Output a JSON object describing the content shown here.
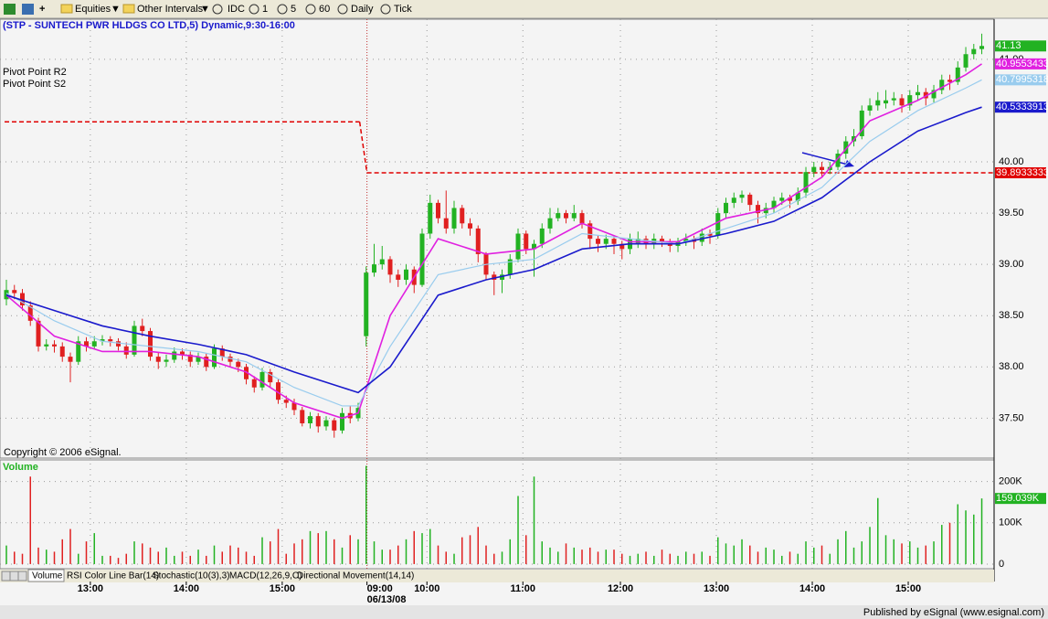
{
  "toolbar": {
    "items": [
      "Equities",
      "Other Intervals",
      "IDC",
      "1",
      "5",
      "60",
      "Daily",
      "Tick"
    ]
  },
  "tabs": [
    "Volume",
    "RSI Color Line Bar(14)",
    "Stochastic(10(3),3)",
    "MACD(12,26,9,C)",
    "Directional Movement(14,14)"
  ],
  "footer": "Published by eSignal (www.esignal.com)",
  "copyright": "Copyright © 2006 eSignal.",
  "chart_data": [
    {
      "type": "candlestick",
      "title": "(STP - SUNTECH PWR HLDGS CO LTD,5) Dynamic,9:30-16:00",
      "up_color": "#22b222",
      "down_color": "#e02020",
      "xlim": [
        -0.8,
        123.54
      ],
      "xticks": [
        {
          "value": 10.5,
          "label": "13:00"
        },
        {
          "value": 22.5,
          "label": "14:00"
        },
        {
          "value": 34.5,
          "label": "15:00"
        },
        {
          "value": 45.1,
          "label": "09:00"
        },
        {
          "value": 52.6,
          "label": "10:00"
        },
        {
          "value": 64.6,
          "label": "11:00"
        },
        {
          "value": 76.8,
          "label": "12:00"
        },
        {
          "value": 88.8,
          "label": "13:00"
        },
        {
          "value": 100.8,
          "label": "14:00"
        },
        {
          "value": 112.8,
          "label": "15:00"
        }
      ],
      "date_label": "06/13/08",
      "ylim": [
        37.12,
        41.4
      ],
      "yticks": [
        {
          "value": 41,
          "label": "41.00"
        },
        {
          "value": 40,
          "label": "40.00"
        },
        {
          "value": 39.5,
          "label": "39.50"
        },
        {
          "value": 39,
          "label": "39.00"
        },
        {
          "value": 38.5,
          "label": "38.50"
        },
        {
          "value": 38,
          "label": "38.00"
        },
        {
          "value": 37.5,
          "label": "37.50"
        }
      ],
      "grid": true,
      "open": [
        38.66,
        38.75,
        38.72,
        38.6,
        38.45,
        38.2,
        38.22,
        38.2,
        38.1,
        38.05,
        38.25,
        38.2,
        38.25,
        38.27,
        38.25,
        38.2,
        38.12,
        38.4,
        38.35,
        38.1,
        38.05,
        38.07,
        38.15,
        38.12,
        38.05,
        38.1,
        38.0,
        38.18,
        38.1,
        38.05,
        38.0,
        37.88,
        37.8,
        37.95,
        37.85,
        37.68,
        37.65,
        37.58,
        37.45,
        37.52,
        37.42,
        37.48,
        37.38,
        37.55,
        37.5,
        38.3,
        38.92,
        39.0,
        39.05,
        38.9,
        38.85,
        38.95,
        38.8,
        39.3,
        39.6,
        39.45,
        39.35,
        39.55,
        39.4,
        39.35,
        39.1,
        38.9,
        38.85,
        38.9,
        39.05,
        39.3,
        39.15,
        39.2,
        39.35,
        39.45,
        39.5,
        39.45,
        39.5,
        39.4,
        39.25,
        39.2,
        39.25,
        39.2,
        39.15,
        39.2,
        39.25,
        39.2,
        39.25,
        39.22,
        39.18,
        39.22,
        39.25,
        39.22,
        39.3,
        39.28,
        39.5,
        39.6,
        39.65,
        39.68,
        39.58,
        39.5,
        39.55,
        39.62,
        39.65,
        39.62,
        39.7,
        39.9,
        39.95,
        39.92,
        39.95,
        40.08,
        40.2,
        40.25,
        40.5,
        40.55,
        40.57,
        40.6,
        40.62,
        40.55,
        40.65,
        40.68,
        40.62,
        40.7,
        40.8,
        40.78,
        40.92,
        41.05,
        41.1
      ],
      "high": [
        38.85,
        38.8,
        38.76,
        38.64,
        38.48,
        38.27,
        38.26,
        38.24,
        38.14,
        38.3,
        38.29,
        38.3,
        38.31,
        38.3,
        38.28,
        38.24,
        38.45,
        38.47,
        38.38,
        38.14,
        38.12,
        38.19,
        38.18,
        38.15,
        38.14,
        38.13,
        38.22,
        38.21,
        38.13,
        38.08,
        38.03,
        37.91,
        37.99,
        37.98,
        37.88,
        37.72,
        37.69,
        37.61,
        37.56,
        37.55,
        37.52,
        37.5,
        37.6,
        37.62,
        37.65,
        38.98,
        39.2,
        39.18,
        39.08,
        38.95,
        39.0,
        38.98,
        39.35,
        39.68,
        39.63,
        39.72,
        39.62,
        39.58,
        39.45,
        39.38,
        39.12,
        38.93,
        38.95,
        39.1,
        39.35,
        39.33,
        39.24,
        39.4,
        39.55,
        39.55,
        39.53,
        39.58,
        39.53,
        39.43,
        39.28,
        39.29,
        39.28,
        39.23,
        39.3,
        39.32,
        39.28,
        39.3,
        39.28,
        39.25,
        39.26,
        39.3,
        39.28,
        39.35,
        39.34,
        39.55,
        39.65,
        39.7,
        39.72,
        39.7,
        39.62,
        39.6,
        39.66,
        39.7,
        39.68,
        39.75,
        39.95,
        40.0,
        40.0,
        40.0,
        40.12,
        40.25,
        40.32,
        40.55,
        40.62,
        40.68,
        40.7,
        40.68,
        40.66,
        40.7,
        40.75,
        40.72,
        40.75,
        40.85,
        40.85,
        40.98,
        41.12,
        41.15,
        41.25
      ],
      "low": [
        38.6,
        38.66,
        38.55,
        38.4,
        38.15,
        38.16,
        38.14,
        38.05,
        37.85,
        38.02,
        38.15,
        38.17,
        38.21,
        38.2,
        38.16,
        38.08,
        38.1,
        38.3,
        38.06,
        37.98,
        38.0,
        38.04,
        38.07,
        38.0,
        38.02,
        37.96,
        37.98,
        38.06,
        38.0,
        37.95,
        37.83,
        37.75,
        37.77,
        37.8,
        37.64,
        37.6,
        37.53,
        37.42,
        37.4,
        37.36,
        37.38,
        37.31,
        37.35,
        37.45,
        37.47,
        38.2,
        38.88,
        38.95,
        38.82,
        38.78,
        38.8,
        38.72,
        38.78,
        39.25,
        39.4,
        39.3,
        39.3,
        39.35,
        39.28,
        39.02,
        38.85,
        38.7,
        38.72,
        38.86,
        39.02,
        39.1,
        38.88,
        39.16,
        39.3,
        39.42,
        39.4,
        39.42,
        39.35,
        39.15,
        39.12,
        39.15,
        39.1,
        39.05,
        39.1,
        39.16,
        39.15,
        39.15,
        39.17,
        39.12,
        39.12,
        39.18,
        39.15,
        39.18,
        39.2,
        39.25,
        39.45,
        39.55,
        39.6,
        39.52,
        39.4,
        39.45,
        39.5,
        39.58,
        39.55,
        39.58,
        39.65,
        39.85,
        39.86,
        39.88,
        39.92,
        40.03,
        40.15,
        40.22,
        40.45,
        40.5,
        40.52,
        40.55,
        40.48,
        40.5,
        40.6,
        40.55,
        40.58,
        40.66,
        40.7,
        40.75,
        40.88,
        41.0,
        41.05
      ],
      "close": [
        38.75,
        38.72,
        38.6,
        38.45,
        38.2,
        38.22,
        38.2,
        38.1,
        38.05,
        38.25,
        38.2,
        38.25,
        38.27,
        38.25,
        38.2,
        38.12,
        38.4,
        38.35,
        38.1,
        38.05,
        38.07,
        38.15,
        38.12,
        38.05,
        38.1,
        38.0,
        38.18,
        38.1,
        38.05,
        38.0,
        37.88,
        37.8,
        37.95,
        37.85,
        37.68,
        37.65,
        37.58,
        37.45,
        37.52,
        37.42,
        37.48,
        37.38,
        37.55,
        37.5,
        37.6,
        38.92,
        39.0,
        39.05,
        38.9,
        38.85,
        38.95,
        38.8,
        39.3,
        39.6,
        39.45,
        39.35,
        39.55,
        39.4,
        39.35,
        39.1,
        38.9,
        38.85,
        38.9,
        39.05,
        39.3,
        39.15,
        39.2,
        39.35,
        39.45,
        39.5,
        39.45,
        39.5,
        39.4,
        39.25,
        39.2,
        39.25,
        39.2,
        39.15,
        39.25,
        39.25,
        39.2,
        39.25,
        39.22,
        39.18,
        39.22,
        39.25,
        39.22,
        39.3,
        39.28,
        39.5,
        39.6,
        39.65,
        39.68,
        39.58,
        39.5,
        39.55,
        39.62,
        39.65,
        39.62,
        39.7,
        39.9,
        39.95,
        39.92,
        39.95,
        40.08,
        40.2,
        40.25,
        40.5,
        40.55,
        40.6,
        40.6,
        40.62,
        40.55,
        40.65,
        40.68,
        40.62,
        40.7,
        40.8,
        40.78,
        40.92,
        41.05,
        41.1,
        41.13
      ],
      "series": [
        {
          "color": "#e020e0",
          "x": [
            0,
            6,
            12,
            18,
            24,
            30,
            36,
            42,
            44,
            48,
            54,
            60,
            66,
            72,
            78,
            84,
            90,
            96,
            102,
            108,
            114,
            120,
            122
          ],
          "values": [
            38.7,
            38.3,
            38.15,
            38.15,
            38.1,
            37.95,
            37.65,
            37.5,
            37.55,
            38.5,
            39.25,
            39.1,
            39.15,
            39.4,
            39.22,
            39.22,
            39.45,
            39.55,
            39.85,
            40.4,
            40.6,
            40.85,
            40.9553433
          ]
        },
        {
          "color": "#99ccee",
          "x": [
            0,
            6,
            12,
            18,
            24,
            30,
            36,
            42,
            44,
            48,
            54,
            60,
            66,
            72,
            78,
            84,
            90,
            96,
            102,
            108,
            114,
            120,
            122
          ],
          "values": [
            38.72,
            38.45,
            38.25,
            38.2,
            38.15,
            38.05,
            37.8,
            37.62,
            37.62,
            38.2,
            38.9,
            39.0,
            39.05,
            39.3,
            39.25,
            39.2,
            39.35,
            39.5,
            39.75,
            40.2,
            40.5,
            40.72,
            40.7995318
          ]
        },
        {
          "color": "#1a1acc",
          "x": [
            0,
            6,
            12,
            18,
            24,
            30,
            36,
            42,
            44,
            48,
            54,
            60,
            66,
            72,
            78,
            84,
            90,
            96,
            102,
            108,
            114,
            120,
            122
          ],
          "values": [
            38.7,
            38.55,
            38.4,
            38.3,
            38.22,
            38.12,
            37.95,
            37.8,
            37.75,
            38.0,
            38.7,
            38.85,
            38.95,
            39.15,
            39.2,
            39.2,
            39.3,
            39.42,
            39.65,
            40.0,
            40.3,
            40.48,
            40.5333913
          ]
        }
      ],
      "pivots": [
        {
          "name": "Pivot Point R2"
        },
        {
          "name": "Pivot Point S2",
          "color": "#e00000",
          "values": [
            40.39,
            39.8933333
          ]
        }
      ]
    },
    {
      "type": "bar",
      "title": "Volume",
      "ylim": [
        -9000,
        248000
      ],
      "yticks": [
        {
          "value": 200000,
          "label": "200K"
        },
        {
          "value": 100000,
          "label": "100K"
        },
        0
      ],
      "values": [
        45000,
        30000,
        25000,
        212000,
        40000,
        35000,
        30000,
        60000,
        85000,
        25000,
        55000,
        75000,
        20000,
        20000,
        15000,
        25000,
        55000,
        50000,
        40000,
        30000,
        40000,
        20000,
        30000,
        20000,
        35000,
        20000,
        45000,
        30000,
        45000,
        40000,
        30000,
        20000,
        65000,
        55000,
        85000,
        25000,
        50000,
        60000,
        80000,
        75000,
        80000,
        60000,
        40000,
        70000,
        60000,
        238000,
        55000,
        35000,
        35000,
        45000,
        60000,
        80000,
        75000,
        85000,
        45000,
        30000,
        25000,
        65000,
        70000,
        90000,
        45000,
        25000,
        30000,
        60000,
        165000,
        70000,
        212000,
        55000,
        40000,
        30000,
        50000,
        40000,
        35000,
        40000,
        30000,
        35000,
        35000,
        25000,
        20000,
        25000,
        30000,
        20000,
        35000,
        25000,
        20000,
        30000,
        25000,
        30000,
        20000,
        65000,
        50000,
        45000,
        60000,
        45000,
        30000,
        40000,
        35000,
        20000,
        30000,
        25000,
        55000,
        40000,
        45000,
        25000,
        60000,
        80000,
        40000,
        55000,
        90000,
        160000,
        70000,
        60000,
        50000,
        55000,
        40000,
        45000,
        55000,
        95000,
        100000,
        145000,
        130000,
        120000,
        159039
      ],
      "value_labels": [
        null,
        null,
        null,
        null,
        null,
        null,
        null,
        null,
        null,
        null,
        null,
        null,
        null,
        null,
        null,
        null,
        null,
        null,
        null,
        null,
        null,
        null,
        null,
        null,
        null,
        null,
        null,
        null,
        null,
        null,
        null,
        null,
        null,
        null,
        null,
        null,
        null,
        null,
        null,
        null,
        null,
        null,
        null,
        null,
        null,
        null,
        null,
        null,
        null,
        null,
        null,
        null,
        null,
        null,
        null,
        null,
        null,
        null,
        null,
        null,
        null,
        null,
        null,
        null,
        null,
        null,
        null,
        null,
        null,
        null,
        null,
        null,
        null,
        null,
        null,
        null,
        null,
        null,
        null,
        null,
        null,
        null,
        null,
        null,
        null,
        null,
        null,
        null,
        null,
        null,
        null,
        null,
        null,
        null,
        null,
        null,
        null,
        null,
        null,
        null,
        null,
        null,
        null,
        null,
        null,
        null,
        null,
        null,
        null,
        null,
        null,
        null,
        null,
        null,
        null,
        null,
        null,
        null,
        null,
        null,
        null,
        null,
        "159.039K"
      ]
    }
  ]
}
